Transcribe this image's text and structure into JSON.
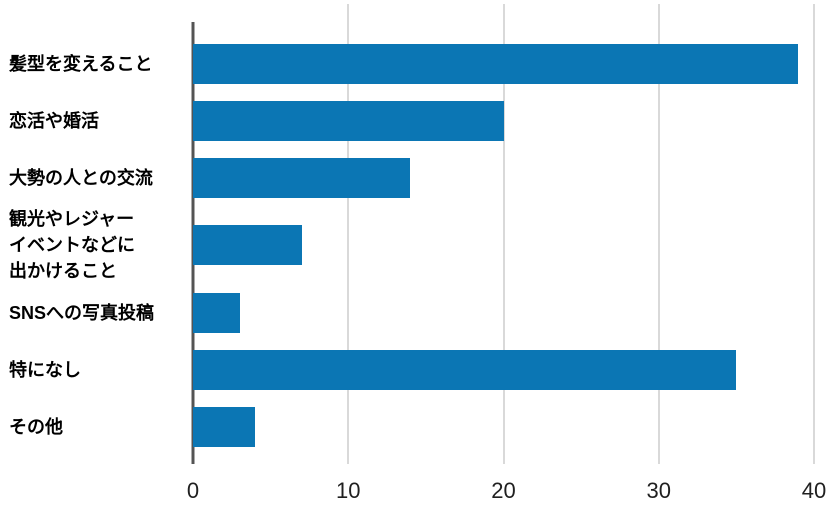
{
  "chart_data": {
    "type": "bar",
    "orientation": "horizontal",
    "title": "",
    "xlabel": "",
    "ylabel": "",
    "categories": [
      "髪型を変えること",
      "恋活や婚活",
      "大勢の人との交流",
      "観光やレジャー\nイベントなどに\n出かけること",
      "SNSへの写真投稿",
      "特になし",
      "その他"
    ],
    "values": [
      39,
      20,
      14,
      7,
      3,
      35,
      4
    ],
    "xlim": [
      0,
      40
    ],
    "x_ticks": [
      "0",
      "10",
      "20",
      "30",
      "40"
    ],
    "x_tick_values": [
      0,
      10,
      20,
      30,
      40
    ],
    "grid": true,
    "legend": false,
    "colors": {
      "bar": "#0b76b4",
      "gridline": "#d9d9d9",
      "axis": "#545454",
      "label_text": "#000000",
      "tick_text": "#202020",
      "background": "#ffffff"
    }
  }
}
